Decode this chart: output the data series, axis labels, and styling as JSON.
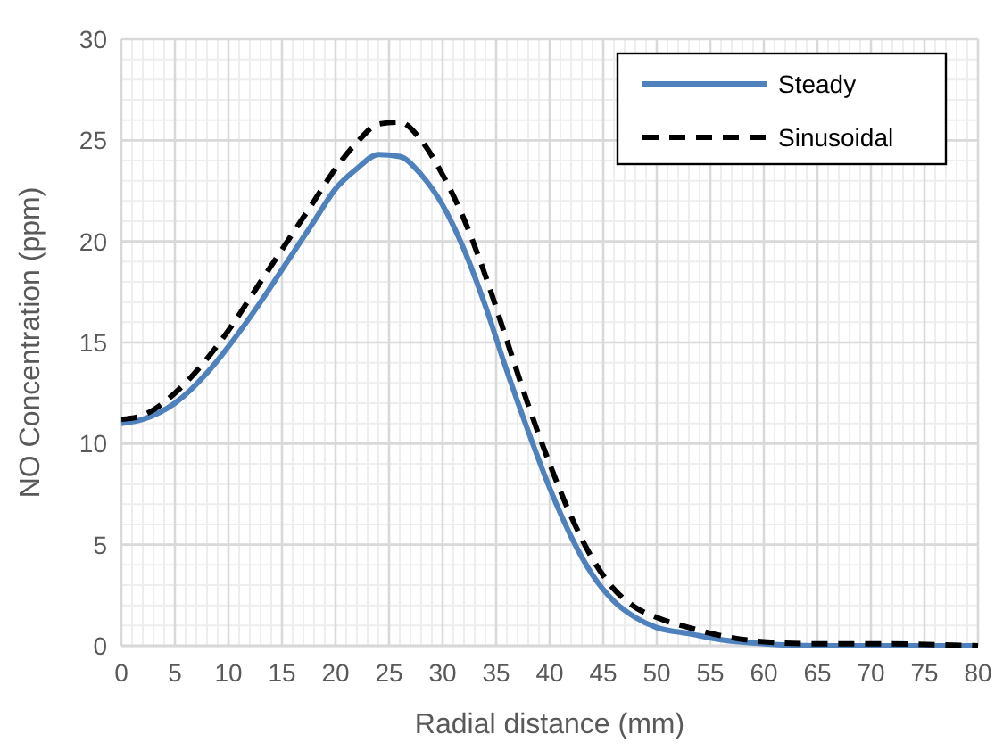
{
  "chart_data": {
    "type": "line",
    "xlabel": "Radial distance (mm)",
    "ylabel": "NO Concentration (ppm)",
    "x": [
      0,
      2,
      5,
      8,
      10,
      13,
      15,
      18,
      20,
      22,
      24,
      26,
      28,
      30,
      32,
      34,
      36,
      38,
      40,
      42,
      44,
      46,
      48,
      50,
      53,
      56,
      60,
      65,
      70,
      80
    ],
    "series": [
      {
        "name": "Steady",
        "color": "#4f81bd",
        "line_style": "solid",
        "values": [
          11.0,
          11.2,
          12.0,
          13.5,
          14.8,
          17.0,
          18.6,
          21.0,
          22.6,
          23.6,
          24.3,
          24.2,
          23.3,
          21.8,
          19.6,
          16.8,
          13.6,
          10.6,
          7.8,
          5.4,
          3.5,
          2.2,
          1.4,
          0.9,
          0.6,
          0.3,
          0.1,
          0,
          0,
          0
        ]
      },
      {
        "name": "Sinusoidal",
        "color": "#000000",
        "line_style": "dashed",
        "values": [
          11.2,
          11.4,
          12.5,
          14.2,
          15.6,
          18.0,
          19.6,
          22.0,
          23.6,
          24.9,
          25.8,
          25.9,
          25.0,
          23.3,
          21.1,
          18.3,
          15.1,
          11.9,
          9.0,
          6.4,
          4.3,
          2.8,
          1.9,
          1.4,
          0.9,
          0.5,
          0.2,
          0.1,
          0.1,
          0
        ]
      }
    ],
    "xlim": [
      0,
      80
    ],
    "xticks": [
      0,
      5,
      10,
      15,
      20,
      25,
      30,
      35,
      40,
      45,
      50,
      55,
      60,
      65,
      70,
      75,
      80
    ],
    "ylim": [
      0,
      30
    ],
    "yticks": [
      0,
      5,
      10,
      15,
      20,
      25,
      30
    ],
    "grid": true,
    "legend": "top right"
  }
}
